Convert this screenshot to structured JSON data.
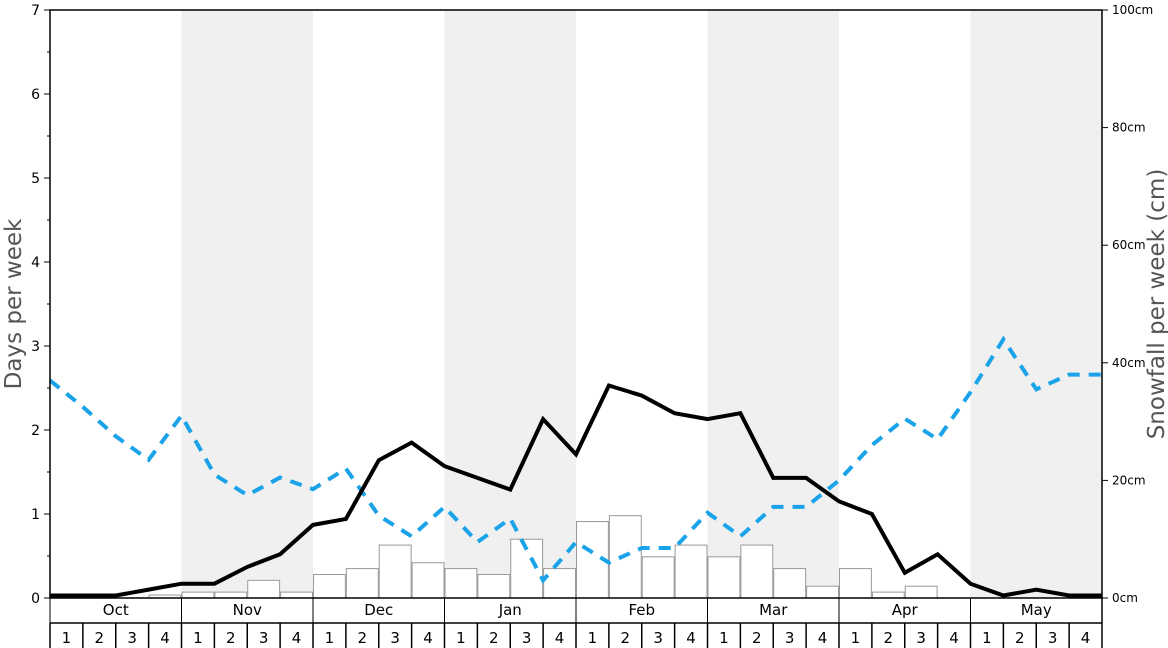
{
  "chart_data": {
    "type": "bar",
    "ylabel": "Days per week",
    "ylabel_right": "Snowfall per week (cm)",
    "ylim": [
      0,
      7
    ],
    "ylim_right": [
      0,
      100
    ],
    "y_ticks": [
      "0",
      "1",
      "2",
      "3",
      "4",
      "5",
      "6",
      "7"
    ],
    "y_right_ticks": [
      "0cm",
      "20cm",
      "40cm",
      "60cm",
      "80cm",
      "100cm"
    ],
    "y_right_tick_values": [
      0,
      20,
      40,
      60,
      80,
      100
    ],
    "months": [
      "Oct",
      "Nov",
      "Dec",
      "Jan",
      "Feb",
      "Mar",
      "Apr",
      "May"
    ],
    "weeks": [
      "1",
      "2",
      "3",
      "4"
    ],
    "shaded_months": [
      "Nov",
      "Jan",
      "Mar",
      "May"
    ],
    "colors": {
      "shade": "#f0f0f0",
      "bar_fill": "#ffffff",
      "bar_stroke": "#999999",
      "solid_line": "#000000",
      "dashed_line": "#1aa3e8",
      "axis": "#000000"
    },
    "series": [
      {
        "type": "bar",
        "axis": "right",
        "values": [
          0,
          0,
          0,
          0.5,
          1,
          1,
          3,
          1,
          4,
          5,
          9,
          6,
          5,
          4,
          10,
          5,
          13,
          14,
          7,
          9,
          7,
          9,
          5,
          2,
          5,
          1,
          2,
          0,
          0,
          0,
          0,
          0
        ]
      },
      {
        "type": "line",
        "style": "solid",
        "axis": "left",
        "values": [
          0.03,
          0.03,
          0.03,
          0.1,
          0.17,
          0.17,
          0.37,
          0.52,
          0.87,
          0.94,
          1.64,
          1.85,
          1.57,
          1.43,
          1.29,
          2.13,
          1.71,
          2.53,
          2.41,
          2.2,
          2.13,
          2.2,
          1.43,
          1.43,
          1.15,
          1.0,
          0.3,
          0.52,
          0.17,
          0.03,
          0.1,
          0.03,
          0.03
        ]
      },
      {
        "type": "line",
        "style": "dashed",
        "axis": "right",
        "values": [
          37,
          32.5,
          27.5,
          23.5,
          31,
          21,
          17.5,
          20.5,
          18.5,
          22,
          14,
          10.5,
          15.5,
          9.5,
          13.5,
          3,
          9.5,
          6,
          8.5,
          8.5,
          14.5,
          10.5,
          15.5,
          15.5,
          20,
          26,
          30.5,
          27,
          35,
          44,
          35.5,
          38,
          38
        ]
      }
    ]
  }
}
